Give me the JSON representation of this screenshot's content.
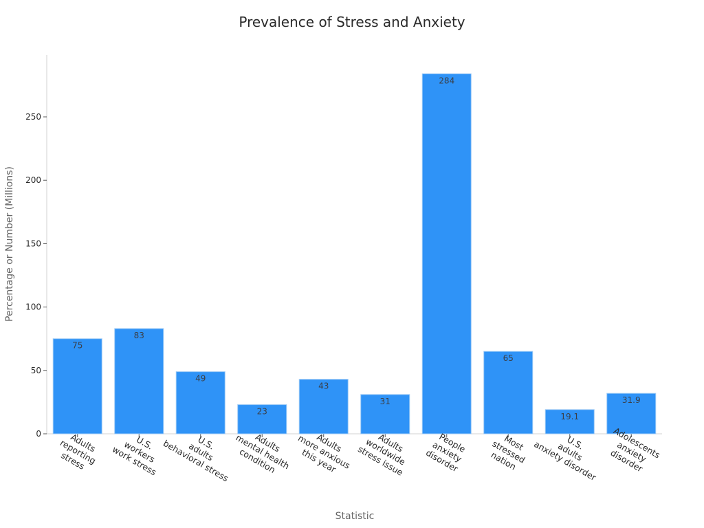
{
  "chart_data": {
    "type": "bar",
    "title": "Prevalence of Stress and Anxiety",
    "xlabel": "Statistic",
    "ylabel": "Percentage or Number (Millions)",
    "ylim": [
      0,
      298
    ],
    "yticks": [
      0,
      50,
      100,
      150,
      200,
      250
    ],
    "grid": false,
    "legend": null,
    "bar_color": "#2f93f7",
    "categories": [
      [
        "Adults",
        "reporting",
        "stress"
      ],
      [
        "U.S.",
        "workers",
        "work stress"
      ],
      [
        "U.S.",
        "adults",
        "behavioral stress"
      ],
      [
        "Adults",
        "mental health",
        "condition"
      ],
      [
        "Adults",
        "more anxious",
        "this year"
      ],
      [
        "Adults",
        "worldwide",
        "stress issue"
      ],
      [
        "People",
        "anxiety",
        "disorder"
      ],
      [
        "Most",
        "stressed",
        "nation"
      ],
      [
        "U.S.",
        "adults",
        "anxiety disorder"
      ],
      [
        "Adolescents",
        "anxiety",
        "disorder"
      ]
    ],
    "values": [
      75,
      83,
      49,
      23,
      43,
      31,
      284,
      65,
      19.1,
      31.9
    ],
    "value_labels": [
      "75",
      "83",
      "49",
      "23",
      "43",
      "31",
      "284",
      "65",
      "19.1",
      "31.9"
    ]
  }
}
